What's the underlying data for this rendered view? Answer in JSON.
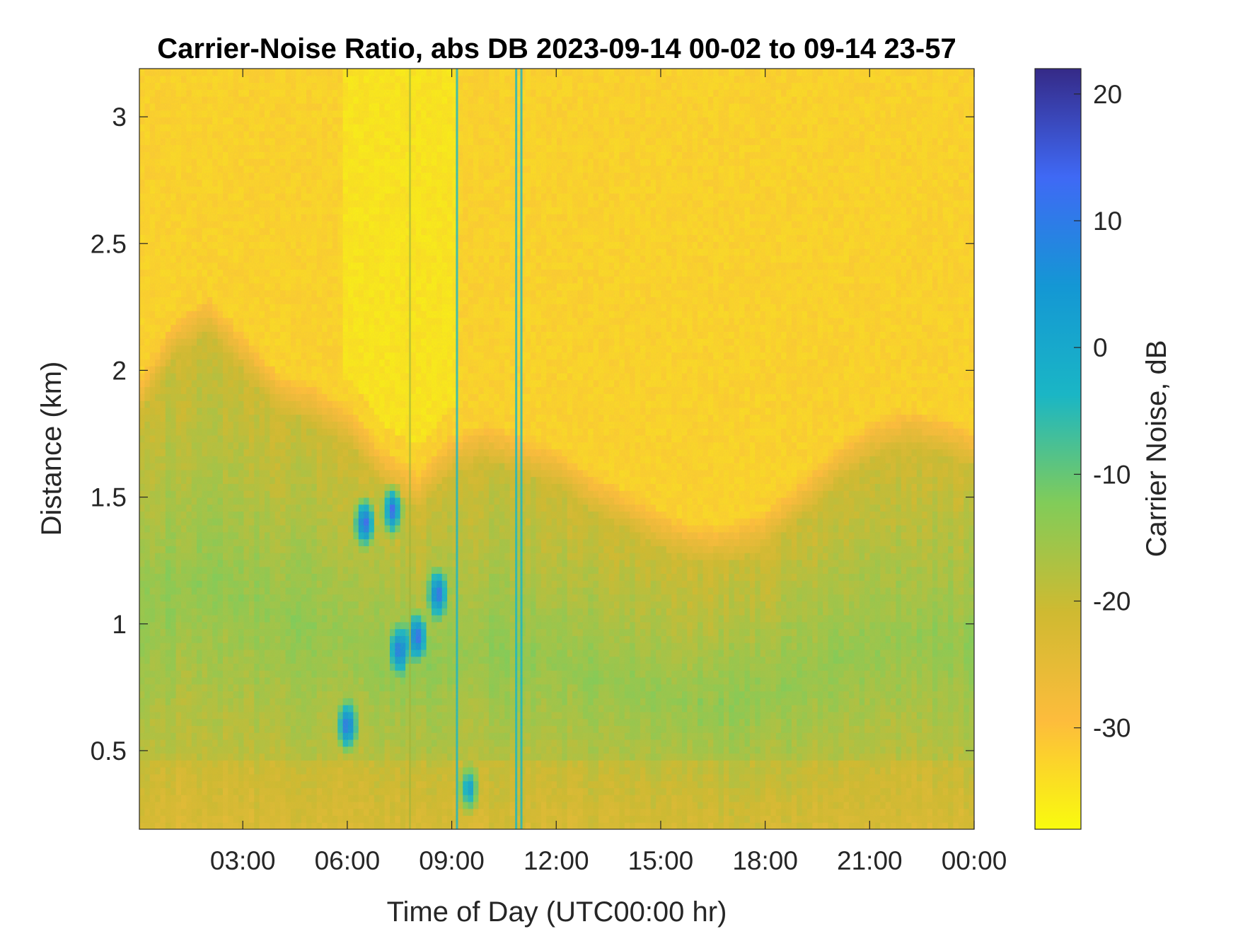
{
  "chart_data": {
    "type": "heatmap",
    "title": "Carrier-Noise Ratio, abs DB 2023-09-14 00-02 to 09-14 23-57",
    "xlabel": "Time of Day (UTC00:00 hr)",
    "ylabel": "Distance (km)",
    "x_ticks": [
      {
        "value": 3,
        "label": "03:00"
      },
      {
        "value": 6,
        "label": "06:00"
      },
      {
        "value": 9,
        "label": "09:00"
      },
      {
        "value": 12,
        "label": "12:00"
      },
      {
        "value": 15,
        "label": "15:00"
      },
      {
        "value": 18,
        "label": "18:00"
      },
      {
        "value": 21,
        "label": "21:00"
      },
      {
        "value": 24,
        "label": "00:00"
      }
    ],
    "xlim": [
      0.03,
      24.0
    ],
    "y_ticks": [
      {
        "value": 0.5,
        "label": "0.5"
      },
      {
        "value": 1.0,
        "label": "1"
      },
      {
        "value": 1.5,
        "label": "1.5"
      },
      {
        "value": 2.0,
        "label": "2"
      },
      {
        "value": 2.5,
        "label": "2.5"
      },
      {
        "value": 3.0,
        "label": "3"
      }
    ],
    "ylim": [
      0.19,
      3.19
    ],
    "colorbar": {
      "label": "Carrier Noise, dB",
      "clim": [
        -38,
        22
      ],
      "colormap": "parula-reversed",
      "ticks": [
        {
          "value": 20,
          "label": "20"
        },
        {
          "value": 10,
          "label": "10"
        },
        {
          "value": 0,
          "label": "0"
        },
        {
          "value": -10,
          "label": "-10"
        },
        {
          "value": -20,
          "label": "-20"
        },
        {
          "value": -30,
          "label": "-30"
        }
      ],
      "colors": [
        "#f9fb0e",
        "#fdbc3c",
        "#cfba31",
        "#81cc59",
        "#1ab6c5",
        "#1497d4",
        "#3f69f5",
        "#352a87"
      ]
    },
    "boundary_layer_top_km": [
      {
        "hour": 0.0,
        "km": 1.82
      },
      {
        "hour": 1.0,
        "km": 2.05
      },
      {
        "hour": 2.0,
        "km": 2.15
      },
      {
        "hour": 3.0,
        "km": 2.0
      },
      {
        "hour": 4.0,
        "km": 1.85
      },
      {
        "hour": 5.0,
        "km": 1.8
      },
      {
        "hour": 6.0,
        "km": 1.72
      },
      {
        "hour": 7.0,
        "km": 1.55
      },
      {
        "hour": 8.0,
        "km": 1.45
      },
      {
        "hour": 9.0,
        "km": 1.6
      },
      {
        "hour": 10.0,
        "km": 1.65
      },
      {
        "hour": 11.0,
        "km": 1.6
      },
      {
        "hour": 12.0,
        "km": 1.55
      },
      {
        "hour": 13.0,
        "km": 1.45
      },
      {
        "hour": 14.0,
        "km": 1.38
      },
      {
        "hour": 15.0,
        "km": 1.3
      },
      {
        "hour": 16.0,
        "km": 1.25
      },
      {
        "hour": 17.0,
        "km": 1.25
      },
      {
        "hour": 18.0,
        "km": 1.3
      },
      {
        "hour": 19.0,
        "km": 1.42
      },
      {
        "hour": 20.0,
        "km": 1.55
      },
      {
        "hour": 21.0,
        "km": 1.65
      },
      {
        "hour": 22.0,
        "km": 1.7
      },
      {
        "hour": 23.0,
        "km": 1.68
      },
      {
        "hour": 24.0,
        "km": 1.62
      }
    ],
    "strong_return_core": [
      {
        "hour": 6.0,
        "km": 0.6,
        "db": 15
      },
      {
        "hour": 6.5,
        "km": 1.4,
        "db": 17
      },
      {
        "hour": 7.3,
        "km": 1.45,
        "db": 15
      },
      {
        "hour": 7.5,
        "km": 0.9,
        "db": 14
      },
      {
        "hour": 8.0,
        "km": 0.95,
        "db": 16
      },
      {
        "hour": 8.6,
        "km": 1.12,
        "db": 15
      },
      {
        "hour": 9.5,
        "km": 0.35,
        "db": 5
      }
    ],
    "vertical_streaks_hours": [
      7.8,
      9.15,
      10.85,
      11.0
    ]
  }
}
